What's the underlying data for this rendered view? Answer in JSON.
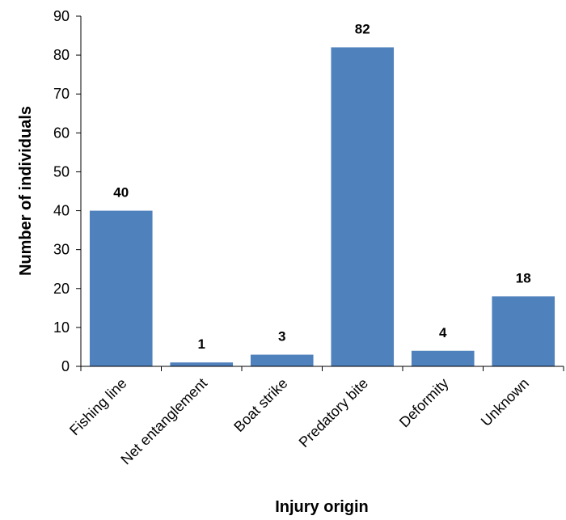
{
  "chart_data": {
    "type": "bar",
    "categories": [
      "Fishing line",
      "Net entanglement",
      "Boat strike",
      "Predatory bite",
      "Deformity",
      "Unknown"
    ],
    "values": [
      40,
      1,
      3,
      82,
      4,
      18
    ],
    "data_labels": [
      "40",
      "1",
      "3",
      "82",
      "4",
      "18"
    ],
    "xlabel": "Injury origin",
    "ylabel": "Number of individuals",
    "ylim": [
      0,
      90
    ],
    "yticks": [
      0,
      10,
      20,
      30,
      40,
      50,
      60,
      70,
      80,
      90
    ],
    "grid": false,
    "legend": "none",
    "bar_color": "#4f81bd"
  }
}
